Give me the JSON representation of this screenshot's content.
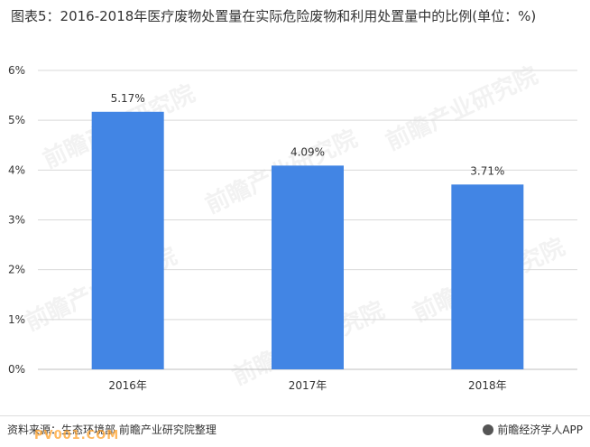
{
  "title": "图表5：2016-2018年医疗废物处置量在实际危险废物和利用处置量中的比例(单位：%)",
  "watermarks": [
    "前瞻产业研究院",
    "前瞻产业研究院",
    "前瞻产业研究院",
    "前瞻产业研究院",
    "前瞻产业研究院",
    "前瞻产业研究院"
  ],
  "footer": {
    "source": "资料来源：生态环境部 前瞻产业研究院整理",
    "site_watermark": "PV001.COM",
    "brand": "前瞻经济学人APP"
  },
  "colors": {
    "bar": "#4285E4",
    "axis": "#bfbfbf",
    "grid": "#d9d9d9"
  },
  "chart_data": {
    "type": "bar",
    "categories": [
      "2016年",
      "2017年",
      "2018年"
    ],
    "values": [
      5.17,
      4.09,
      3.71
    ],
    "data_labels": [
      "5.17%",
      "4.09%",
      "3.71%"
    ],
    "yticks": [
      0,
      1,
      2,
      3,
      4,
      5,
      6
    ],
    "ytick_labels": [
      "0%",
      "1%",
      "2%",
      "3%",
      "4%",
      "5%",
      "6%"
    ],
    "ylim": [
      0,
      6
    ],
    "grid": true,
    "legend": "none"
  }
}
